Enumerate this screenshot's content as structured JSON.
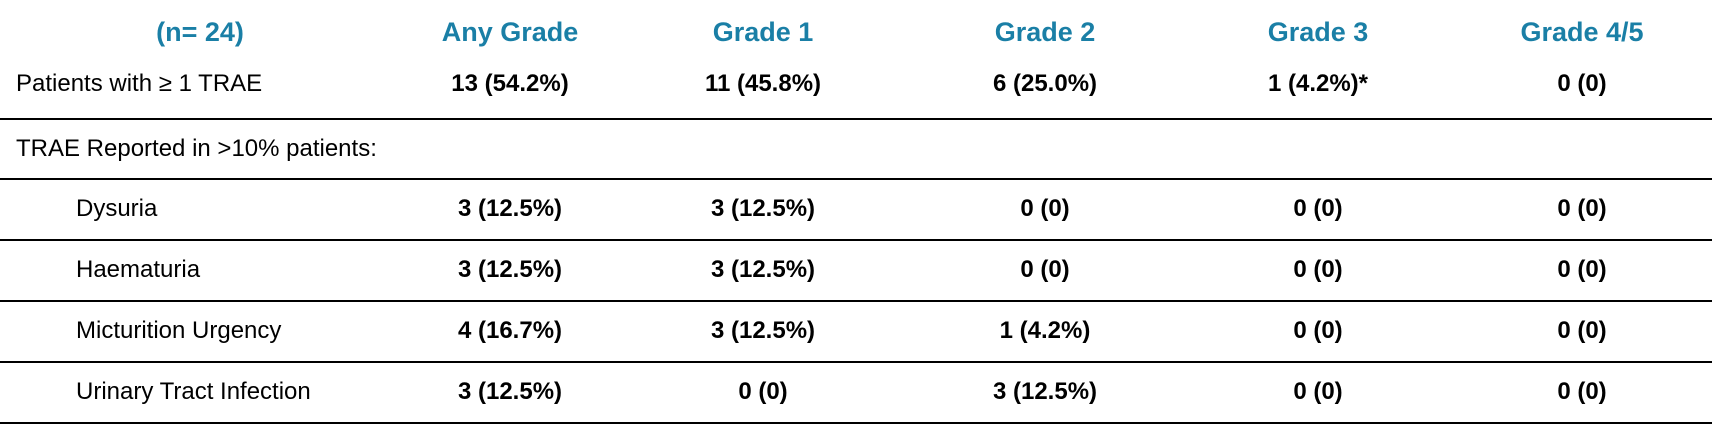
{
  "header": {
    "n_label": "(n= 24)",
    "columns": [
      "Any Grade",
      "Grade 1",
      "Grade 2",
      "Grade 3",
      "Grade 4/5"
    ],
    "color": "#1a7fa6"
  },
  "summary_row": {
    "label": "Patients with ≥ 1 TRAE",
    "values": [
      "13 (54.2%)",
      "11 (45.8%)",
      "6 (25.0%)",
      "1 (4.2%)*",
      "0 (0)"
    ]
  },
  "section_label": "TRAE Reported in >10% patients:",
  "rows": [
    {
      "label": "Dysuria",
      "values": [
        "3 (12.5%)",
        "3 (12.5%)",
        "0 (0)",
        "0 (0)",
        "0 (0)"
      ]
    },
    {
      "label": "Haematuria",
      "values": [
        "3 (12.5%)",
        "3 (12.5%)",
        "0 (0)",
        "0 (0)",
        "0 (0)"
      ]
    },
    {
      "label": "Micturition Urgency",
      "values": [
        "4 (16.7%)",
        "3 (12.5%)",
        "1 (4.2%)",
        "0 (0)",
        "0 (0)"
      ]
    },
    {
      "label": "Urinary Tract Infection",
      "values": [
        "3 (12.5%)",
        "0 (0)",
        "3 (12.5%)",
        "0 (0)",
        "0 (0)"
      ]
    }
  ]
}
